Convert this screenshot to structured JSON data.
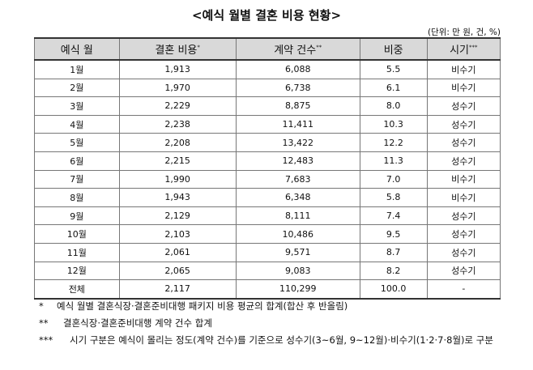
{
  "title": "<예식 월별 결혼 비용 현황>",
  "unit": "(단위: 만 원, 건, %)",
  "table": {
    "headers": [
      {
        "text": "예식 월",
        "sup": null
      },
      {
        "text": "결혼 비용",
        "sup": "*"
      },
      {
        "text": "계약 건수",
        "sup": "**"
      },
      {
        "text": "비중",
        "sup": null
      },
      {
        "text": "시기",
        "sup": "***"
      }
    ],
    "rows": [
      [
        "1월",
        "1,913",
        "6,088",
        "5.5",
        "비수기"
      ],
      [
        "2월",
        "1,970",
        "6,738",
        "6.1",
        "비수기"
      ],
      [
        "3월",
        "2,229",
        "8,875",
        "8.0",
        "성수기"
      ],
      [
        "4월",
        "2,238",
        "11,411",
        "10.3",
        "성수기"
      ],
      [
        "5월",
        "2,208",
        "13,422",
        "12.2",
        "성수기"
      ],
      [
        "6월",
        "2,215",
        "12,483",
        "11.3",
        "성수기"
      ],
      [
        "7월",
        "1,990",
        "7,683",
        "7.0",
        "비수기"
      ],
      [
        "8월",
        "1,943",
        "6,348",
        "5.8",
        "비수기"
      ],
      [
        "9월",
        "2,129",
        "8,111",
        "7.4",
        "성수기"
      ],
      [
        "10월",
        "2,103",
        "10,486",
        "9.5",
        "성수기"
      ],
      [
        "11월",
        "2,061",
        "9,571",
        "8.7",
        "성수기"
      ],
      [
        "12월",
        "2,065",
        "9,083",
        "8.2",
        "성수기"
      ],
      [
        "전체",
        "2,117",
        "110,299",
        "100.0",
        "-"
      ]
    ]
  },
  "footnotes": [
    {
      "marker": "*",
      "text": "예식 월별 결혼식장·결혼준비대행 패키지 비용 평균의 합계(합산 후 반올림)"
    },
    {
      "marker": "**",
      "text": "결혼식장·결혼준비대행 계약 건수 합계"
    },
    {
      "marker": "***",
      "text": "시기 구분은 예식이 몰리는 정도(계약 건수)를 기준으로 성수기(3~6월, 9~12월)·비수기(1·2·7·8월)로 구분"
    }
  ]
}
